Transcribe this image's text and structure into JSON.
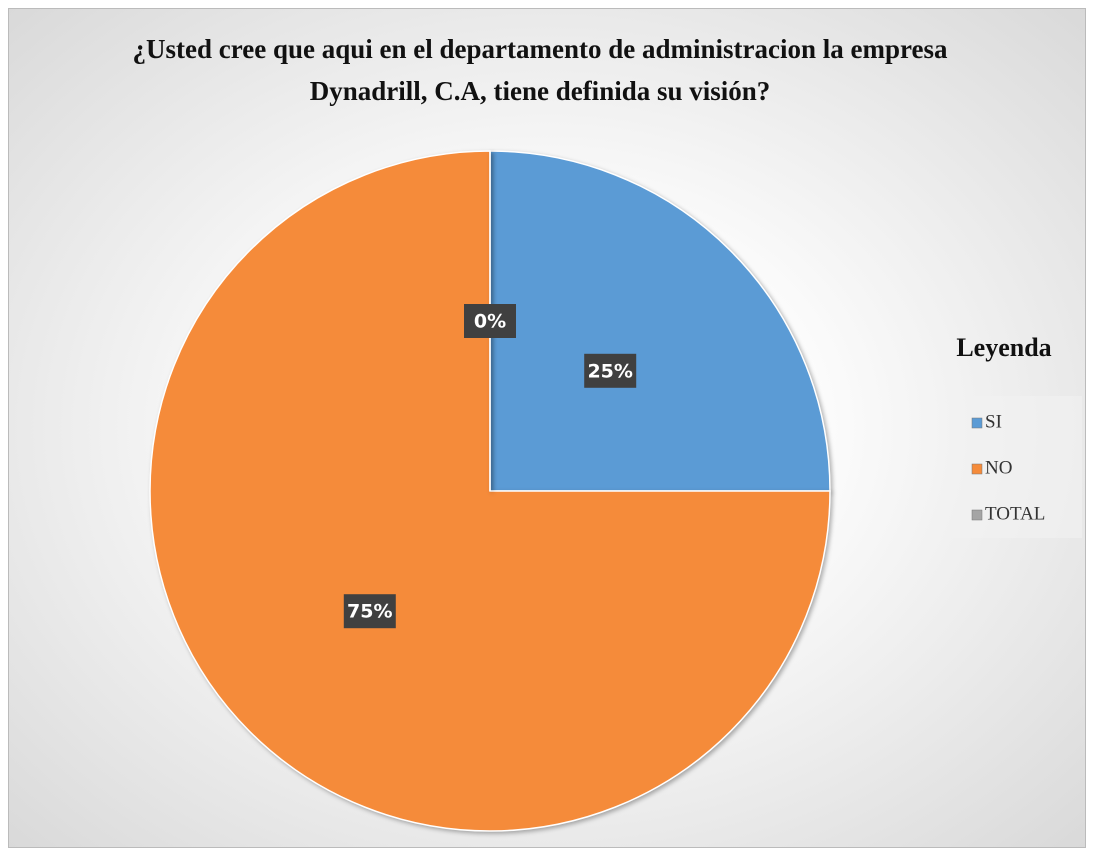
{
  "chart_data": {
    "type": "pie",
    "title": "¿Usted cree que aqui en el departamento de administracion la empresa Dynadrill, C.A, tiene definida su visión?",
    "legend_title": "Leyenda",
    "legend": "right",
    "categories": [
      "SI",
      "NO",
      "TOTAL"
    ],
    "values": [
      25,
      75,
      0
    ],
    "value_labels": [
      "25%",
      "75%",
      "0%"
    ],
    "colors": [
      "#5b9bd5",
      "#f58b3a",
      "#a5a5a5"
    ]
  }
}
